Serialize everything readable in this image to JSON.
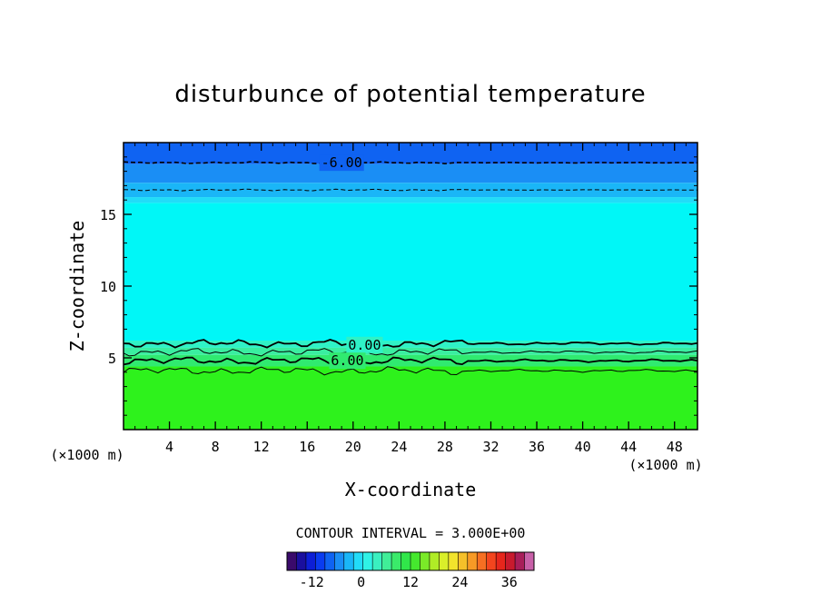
{
  "chart_data": {
    "type": "heatmap",
    "title": "disturbunce of potential temperature",
    "xlabel": "X-coordinate",
    "ylabel": "Z-coordinate",
    "x_unit_left": "(×1000 m)",
    "x_unit_right": "(×1000 m)",
    "xlim": [
      0,
      50
    ],
    "ylim": [
      0,
      20
    ],
    "xticks": [
      4,
      8,
      12,
      16,
      20,
      24,
      28,
      32,
      36,
      40,
      44,
      48
    ],
    "yticks": [
      5,
      10,
      15
    ],
    "contour_interval_text": "CONTOUR INTERVAL = 3.000E+00",
    "contour_labels": [
      {
        "text": "-6.00",
        "x": 19,
        "z": 18.6
      },
      {
        "text": "0.00",
        "x": 21,
        "z": 5.9
      },
      {
        "text": "6.00",
        "x": 19.5,
        "z": 4.8
      }
    ],
    "dashed_contours_z": [
      18.6,
      16.7
    ],
    "solid_contours_z": [
      6.0,
      5.4,
      4.8,
      4.1
    ],
    "colorbar": {
      "range": [
        -18,
        42
      ],
      "ticks": [
        -12,
        0,
        12,
        24,
        36
      ],
      "colors": [
        "#3a0a6b",
        "#1a0f9e",
        "#0d1fd6",
        "#0a3cf0",
        "#0f63f2",
        "#1a8ef5",
        "#1ab6f7",
        "#22dcf8",
        "#2ff2e6",
        "#3af0c0",
        "#40ee98",
        "#3aea6a",
        "#30e64a",
        "#45e82e",
        "#7aea28",
        "#b0ec26",
        "#d9ef2a",
        "#f2e32c",
        "#f5c02a",
        "#f79a26",
        "#f66f22",
        "#f3451e",
        "#e6261c",
        "#c81a2e",
        "#a81e5a",
        "#c860a8"
      ]
    },
    "field_bands": [
      {
        "z0": 18.5,
        "z1": 20,
        "value": -10,
        "color": "#0f63f2"
      },
      {
        "z0": 17.2,
        "z1": 18.5,
        "value": -7,
        "color": "#1a8ef5"
      },
      {
        "z0": 16.2,
        "z1": 17.2,
        "value": -4,
        "color": "#1ab6f7"
      },
      {
        "z0": 15.8,
        "z1": 16.2,
        "value": -2,
        "color": "#22dcf8"
      },
      {
        "z0": 6.2,
        "z1": 15.8,
        "value": 0,
        "color": "#00f7f7"
      },
      {
        "z0": 5.7,
        "z1": 6.2,
        "value": 3,
        "color": "#2ff2c6"
      },
      {
        "z0": 5.2,
        "z1": 5.7,
        "value": 6,
        "color": "#3aeea0"
      },
      {
        "z0": 4.4,
        "z1": 5.2,
        "value": 8,
        "color": "#30ea70"
      },
      {
        "z0": 0,
        "z1": 4.4,
        "value": 10,
        "color": "#2ef21c"
      }
    ]
  }
}
